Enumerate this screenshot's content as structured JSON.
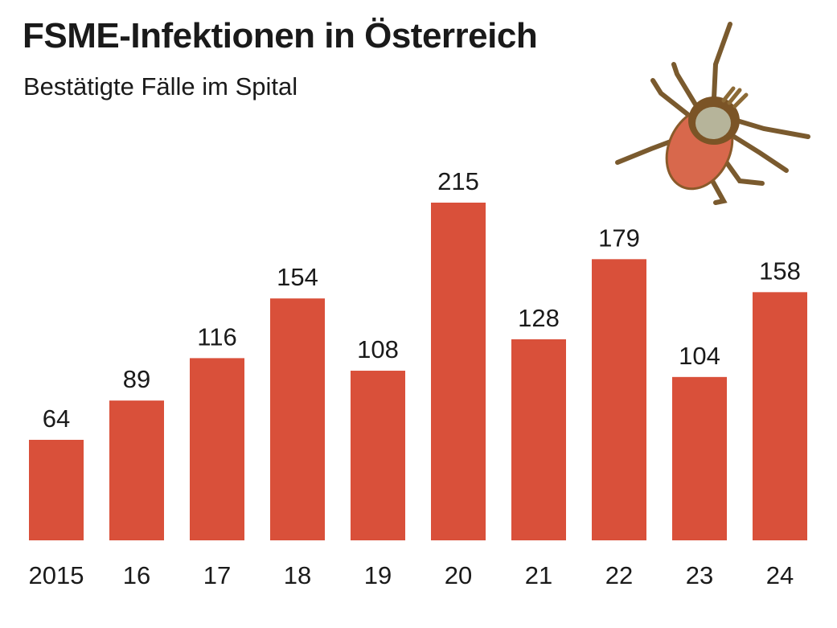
{
  "title": "FSME-Infektionen in Österreich",
  "subtitle": "Bestätigte Fälle im Spital",
  "illustration": "tick",
  "chart_data": {
    "type": "bar",
    "title": "FSME-Infektionen in Österreich",
    "subtitle": "Bestätigte Fälle im Spital",
    "categories": [
      "2015",
      "16",
      "17",
      "18",
      "19",
      "20",
      "21",
      "22",
      "23",
      "24"
    ],
    "values": [
      64,
      89,
      116,
      154,
      108,
      215,
      128,
      179,
      104,
      158
    ],
    "ylim": [
      0,
      215
    ],
    "grid": false,
    "data_labels": true,
    "bar_color": "#d9503a"
  }
}
